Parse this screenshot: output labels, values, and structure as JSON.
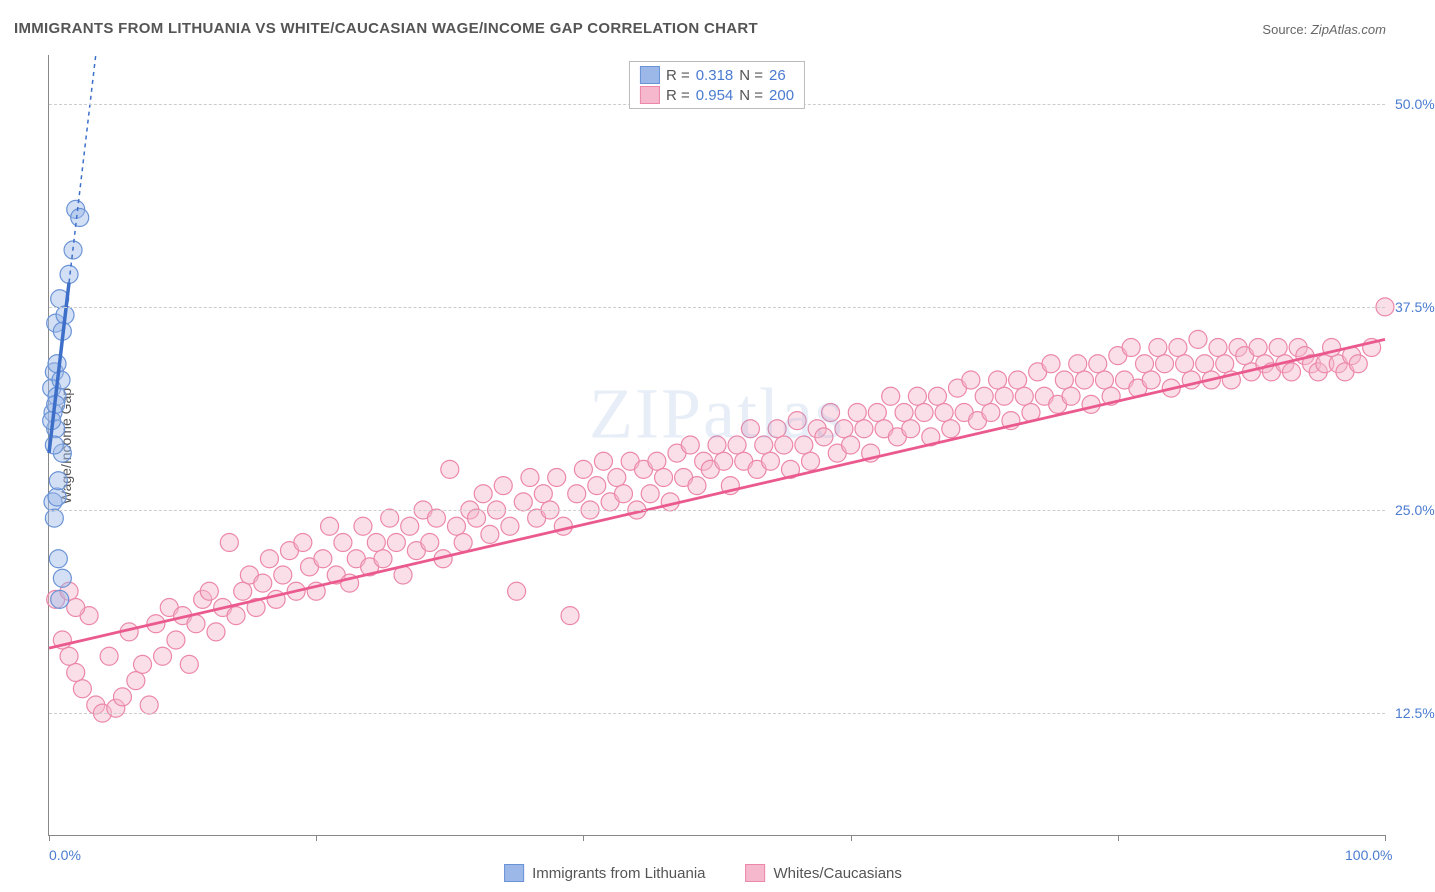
{
  "title": "IMMIGRANTS FROM LITHUANIA VS WHITE/CAUCASIAN WAGE/INCOME GAP CORRELATION CHART",
  "source_label": "Source:",
  "source_value": "ZipAtlas.com",
  "ylabel": "Wage/Income Gap",
  "watermark": "ZIPatlas",
  "chart": {
    "type": "scatter",
    "xlim": [
      0,
      100
    ],
    "ylim": [
      5,
      53
    ],
    "xtick_positions": [
      0,
      20,
      40,
      60,
      80,
      100
    ],
    "xtick_labels": {
      "first": "0.0%",
      "last": "100.0%"
    },
    "yticks": [
      {
        "v": 12.5,
        "label": "12.5%"
      },
      {
        "v": 25.0,
        "label": "25.0%"
      },
      {
        "v": 37.5,
        "label": "37.5%"
      },
      {
        "v": 50.0,
        "label": "50.0%"
      }
    ],
    "background_color": "#ffffff",
    "grid_color": "#cccccc",
    "axis_color": "#888888",
    "tick_label_color": "#4a7bd0",
    "marker_radius": 9,
    "marker_opacity": 0.45,
    "series": [
      {
        "name": "Immigrants from Lithuania",
        "color_fill": "#9bb8e8",
        "color_stroke": "#6a93d6",
        "trend_color": "#3d6fc9",
        "trend_width": 3.5,
        "trend_dash_ext": "4 4",
        "R": "0.318",
        "N": "26",
        "trend": {
          "x1": 0,
          "y1": 28.5,
          "x2": 3.5,
          "y2": 53
        },
        "trend_solid_end": {
          "x": 1.5,
          "y": 39
        },
        "points": [
          [
            0.2,
            32.5
          ],
          [
            0.3,
            31.0
          ],
          [
            0.4,
            33.5
          ],
          [
            0.5,
            30.0
          ],
          [
            0.6,
            32.0
          ],
          [
            0.8,
            38.0
          ],
          [
            0.5,
            36.5
          ],
          [
            0.3,
            25.5
          ],
          [
            0.4,
            24.5
          ],
          [
            0.6,
            25.8
          ],
          [
            0.7,
            26.8
          ],
          [
            1.0,
            28.5
          ],
          [
            1.2,
            37.0
          ],
          [
            1.5,
            39.5
          ],
          [
            1.0,
            36.0
          ],
          [
            1.8,
            41.0
          ],
          [
            2.0,
            43.5
          ],
          [
            2.3,
            43.0
          ],
          [
            0.4,
            29.0
          ],
          [
            0.5,
            31.5
          ],
          [
            0.8,
            19.5
          ],
          [
            1.0,
            20.8
          ],
          [
            0.6,
            34.0
          ],
          [
            0.2,
            30.5
          ],
          [
            0.9,
            33.0
          ],
          [
            0.7,
            22.0
          ]
        ]
      },
      {
        "name": "Whites/Caucasians",
        "color_fill": "#f5b8cc",
        "color_stroke": "#ec87a9",
        "trend_color": "#ea5a8e",
        "trend_width": 2.8,
        "R": "0.954",
        "N": "200",
        "trend": {
          "x1": 0,
          "y1": 16.5,
          "x2": 100,
          "y2": 35.5
        },
        "points": [
          [
            0.5,
            19.5
          ],
          [
            1,
            17
          ],
          [
            1.5,
            20
          ],
          [
            2,
            15
          ],
          [
            2.5,
            14
          ],
          [
            3,
            18.5
          ],
          [
            3.5,
            13
          ],
          [
            4,
            12.5
          ],
          [
            4.5,
            16
          ],
          [
            5,
            12.8
          ],
          [
            5.5,
            13.5
          ],
          [
            6,
            17.5
          ],
          [
            6.5,
            14.5
          ],
          [
            7,
            15.5
          ],
          [
            7.5,
            13
          ],
          [
            1.5,
            16
          ],
          [
            2,
            19
          ],
          [
            8,
            18
          ],
          [
            8.5,
            16
          ],
          [
            9,
            19
          ],
          [
            9.5,
            17
          ],
          [
            10,
            18.5
          ],
          [
            10.5,
            15.5
          ],
          [
            11,
            18
          ],
          [
            11.5,
            19.5
          ],
          [
            12,
            20
          ],
          [
            12.5,
            17.5
          ],
          [
            13,
            19
          ],
          [
            13.5,
            23
          ],
          [
            14,
            18.5
          ],
          [
            14.5,
            20
          ],
          [
            15,
            21
          ],
          [
            15.5,
            19
          ],
          [
            16,
            20.5
          ],
          [
            16.5,
            22
          ],
          [
            17,
            19.5
          ],
          [
            17.5,
            21
          ],
          [
            18,
            22.5
          ],
          [
            18.5,
            20
          ],
          [
            19,
            23
          ],
          [
            19.5,
            21.5
          ],
          [
            20,
            20
          ],
          [
            20.5,
            22
          ],
          [
            21,
            24
          ],
          [
            21.5,
            21
          ],
          [
            22,
            23
          ],
          [
            22.5,
            20.5
          ],
          [
            23,
            22
          ],
          [
            23.5,
            24
          ],
          [
            24,
            21.5
          ],
          [
            24.5,
            23
          ],
          [
            25,
            22
          ],
          [
            25.5,
            24.5
          ],
          [
            26,
            23
          ],
          [
            26.5,
            21
          ],
          [
            27,
            24
          ],
          [
            27.5,
            22.5
          ],
          [
            28,
            25
          ],
          [
            28.5,
            23
          ],
          [
            29,
            24.5
          ],
          [
            29.5,
            22
          ],
          [
            30,
            27.5
          ],
          [
            30.5,
            24
          ],
          [
            31,
            23
          ],
          [
            31.5,
            25
          ],
          [
            32,
            24.5
          ],
          [
            32.5,
            26
          ],
          [
            33,
            23.5
          ],
          [
            33.5,
            25
          ],
          [
            34,
            26.5
          ],
          [
            34.5,
            24
          ],
          [
            35,
            20
          ],
          [
            35.5,
            25.5
          ],
          [
            36,
            27
          ],
          [
            36.5,
            24.5
          ],
          [
            37,
            26
          ],
          [
            37.5,
            25
          ],
          [
            38,
            27
          ],
          [
            38.5,
            24
          ],
          [
            39,
            18.5
          ],
          [
            39.5,
            26
          ],
          [
            40,
            27.5
          ],
          [
            40.5,
            25
          ],
          [
            41,
            26.5
          ],
          [
            41.5,
            28
          ],
          [
            42,
            25.5
          ],
          [
            42.5,
            27
          ],
          [
            43,
            26
          ],
          [
            43.5,
            28
          ],
          [
            44,
            25
          ],
          [
            44.5,
            27.5
          ],
          [
            45,
            26
          ],
          [
            45.5,
            28
          ],
          [
            46,
            27
          ],
          [
            46.5,
            25.5
          ],
          [
            47,
            28.5
          ],
          [
            47.5,
            27
          ],
          [
            48,
            29
          ],
          [
            48.5,
            26.5
          ],
          [
            49,
            28
          ],
          [
            49.5,
            27.5
          ],
          [
            50,
            29
          ],
          [
            50.5,
            28
          ],
          [
            51,
            26.5
          ],
          [
            51.5,
            29
          ],
          [
            52,
            28
          ],
          [
            52.5,
            30
          ],
          [
            53,
            27.5
          ],
          [
            53.5,
            29
          ],
          [
            54,
            28
          ],
          [
            54.5,
            30
          ],
          [
            55,
            29
          ],
          [
            55.5,
            27.5
          ],
          [
            56,
            30.5
          ],
          [
            56.5,
            29
          ],
          [
            57,
            28
          ],
          [
            57.5,
            30
          ],
          [
            58,
            29.5
          ],
          [
            58.5,
            31
          ],
          [
            59,
            28.5
          ],
          [
            59.5,
            30
          ],
          [
            60,
            29
          ],
          [
            60.5,
            31
          ],
          [
            61,
            30
          ],
          [
            61.5,
            28.5
          ],
          [
            62,
            31
          ],
          [
            62.5,
            30
          ],
          [
            63,
            32
          ],
          [
            63.5,
            29.5
          ],
          [
            64,
            31
          ],
          [
            64.5,
            30
          ],
          [
            65,
            32
          ],
          [
            65.5,
            31
          ],
          [
            66,
            29.5
          ],
          [
            66.5,
            32
          ],
          [
            67,
            31
          ],
          [
            67.5,
            30
          ],
          [
            68,
            32.5
          ],
          [
            68.5,
            31
          ],
          [
            69,
            33
          ],
          [
            69.5,
            30.5
          ],
          [
            70,
            32
          ],
          [
            70.5,
            31
          ],
          [
            71,
            33
          ],
          [
            71.5,
            32
          ],
          [
            72,
            30.5
          ],
          [
            72.5,
            33
          ],
          [
            73,
            32
          ],
          [
            73.5,
            31
          ],
          [
            74,
            33.5
          ],
          [
            74.5,
            32
          ],
          [
            75,
            34
          ],
          [
            75.5,
            31.5
          ],
          [
            76,
            33
          ],
          [
            76.5,
            32
          ],
          [
            77,
            34
          ],
          [
            77.5,
            33
          ],
          [
            78,
            31.5
          ],
          [
            78.5,
            34
          ],
          [
            79,
            33
          ],
          [
            79.5,
            32
          ],
          [
            80,
            34.5
          ],
          [
            80.5,
            33
          ],
          [
            81,
            35
          ],
          [
            81.5,
            32.5
          ],
          [
            82,
            34
          ],
          [
            82.5,
            33
          ],
          [
            83,
            35
          ],
          [
            83.5,
            34
          ],
          [
            84,
            32.5
          ],
          [
            84.5,
            35
          ],
          [
            85,
            34
          ],
          [
            85.5,
            33
          ],
          [
            86,
            35.5
          ],
          [
            86.5,
            34
          ],
          [
            87,
            33
          ],
          [
            87.5,
            35
          ],
          [
            88,
            34
          ],
          [
            88.5,
            33
          ],
          [
            89,
            35
          ],
          [
            89.5,
            34.5
          ],
          [
            90,
            33.5
          ],
          [
            90.5,
            35
          ],
          [
            91,
            34
          ],
          [
            91.5,
            33.5
          ],
          [
            92,
            35
          ],
          [
            92.5,
            34
          ],
          [
            93,
            33.5
          ],
          [
            93.5,
            35
          ],
          [
            94,
            34.5
          ],
          [
            94.5,
            34
          ],
          [
            95,
            33.5
          ],
          [
            95.5,
            34
          ],
          [
            96,
            35
          ],
          [
            96.5,
            34
          ],
          [
            97,
            33.5
          ],
          [
            97.5,
            34.5
          ],
          [
            98,
            34
          ],
          [
            99,
            35
          ],
          [
            100,
            37.5
          ]
        ]
      }
    ]
  },
  "legend_stats_labels": {
    "R": "R =",
    "N": "N ="
  }
}
